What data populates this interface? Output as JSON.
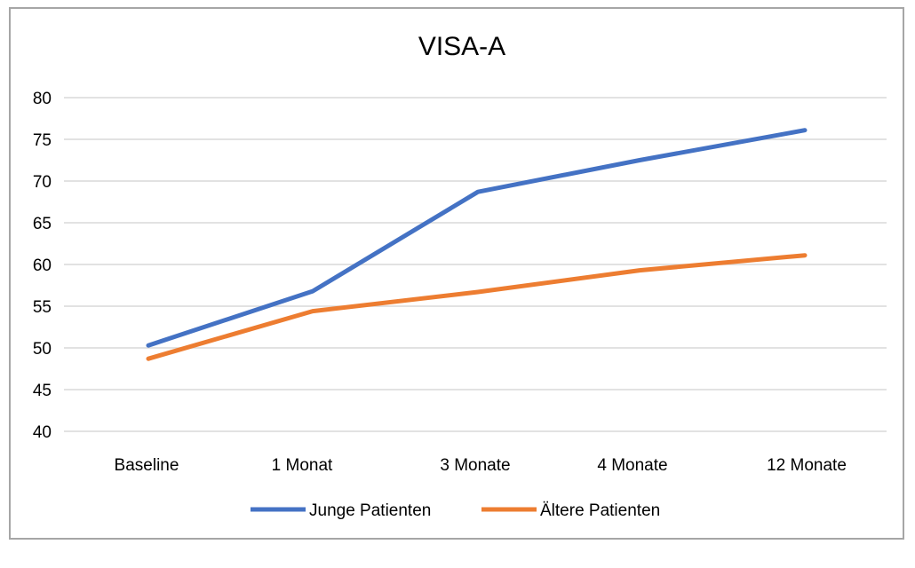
{
  "chart_data": {
    "type": "line",
    "title": "VISA-A",
    "xlabel": "",
    "ylabel": "",
    "categories": [
      "Baseline",
      "1 Monat",
      "3 Monate",
      "4 Monate",
      "12 Monate"
    ],
    "ylim": [
      40,
      80
    ],
    "yticks": [
      40,
      45,
      50,
      55,
      60,
      65,
      70,
      75,
      80
    ],
    "grid": true,
    "legend_position": "bottom",
    "series": [
      {
        "name": "Junge Patienten",
        "color": "#4472c4",
        "values": [
          50.3,
          56.8,
          68.7,
          72.5,
          76.1
        ]
      },
      {
        "name": "Ältere Patienten",
        "color": "#ed7d31",
        "values": [
          48.7,
          54.4,
          56.7,
          59.3,
          61.1
        ]
      }
    ]
  }
}
